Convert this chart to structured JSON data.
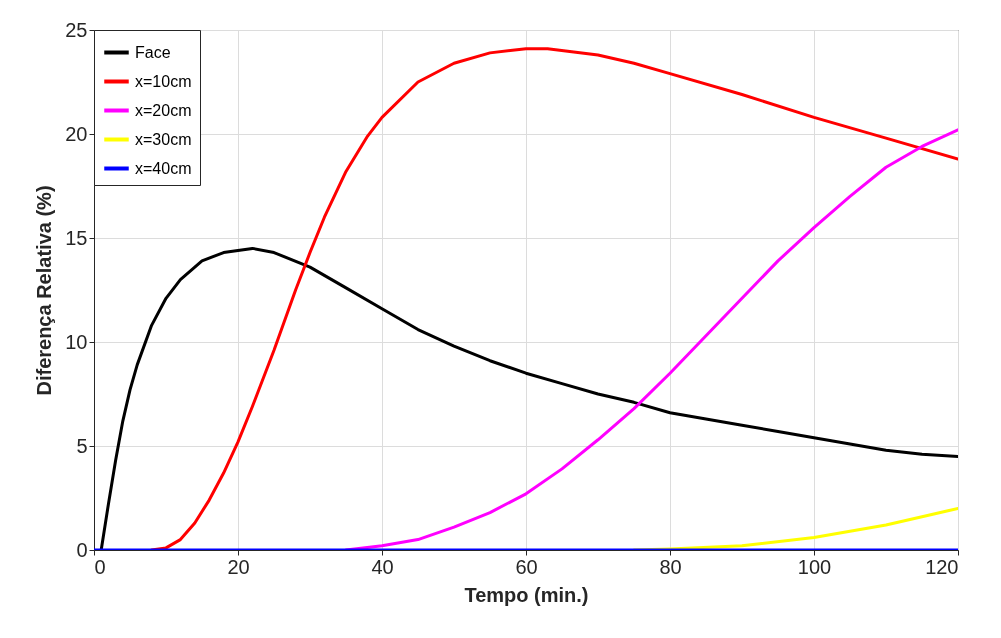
{
  "chart_data": {
    "type": "line",
    "xlabel": "Tempo (min.)",
    "ylabel": "Diferença Relativa (%)",
    "xlim": [
      0,
      120
    ],
    "xticks": [
      0,
      20,
      40,
      60,
      80,
      100,
      120
    ],
    "ylim": [
      0,
      25
    ],
    "yticks": [
      0,
      5,
      10,
      15,
      20,
      25
    ],
    "grid": true,
    "legend": "top left",
    "line_style": "solid",
    "marker": "none",
    "series": [
      {
        "name": "Face",
        "color": "#000000",
        "x": [
          1,
          2,
          3,
          4,
          5,
          6,
          8,
          10,
          12,
          15,
          18,
          22,
          25,
          30,
          35,
          40,
          45,
          50,
          55,
          60,
          65,
          70,
          75,
          80,
          85,
          90,
          95,
          100,
          105,
          110,
          115,
          120
        ],
        "values": [
          0,
          2.2,
          4.3,
          6.2,
          7.7,
          8.9,
          10.8,
          12.1,
          13.0,
          13.9,
          14.3,
          14.5,
          14.3,
          13.6,
          12.6,
          11.6,
          10.6,
          9.8,
          9.1,
          8.5,
          8.0,
          7.5,
          7.1,
          6.6,
          6.3,
          6.0,
          5.7,
          5.4,
          5.1,
          4.8,
          4.6,
          4.5
        ]
      },
      {
        "name": "x=10cm",
        "color": "#ff0000",
        "x": [
          8,
          10,
          12,
          14,
          16,
          18,
          20,
          22,
          25,
          28,
          30,
          32,
          35,
          38,
          40,
          45,
          50,
          55,
          60,
          63,
          70,
          75,
          80,
          90,
          100,
          110,
          120
        ],
        "values": [
          0,
          0.1,
          0.5,
          1.3,
          2.4,
          3.7,
          5.2,
          6.9,
          9.6,
          12.5,
          14.3,
          16.0,
          18.2,
          19.9,
          20.8,
          22.5,
          23.4,
          23.9,
          24.1,
          24.1,
          23.8,
          23.4,
          22.9,
          21.9,
          20.8,
          19.8,
          18.8
        ]
      },
      {
        "name": "x=20cm",
        "color": "#ff00ff",
        "x": [
          35,
          40,
          45,
          50,
          55,
          60,
          65,
          70,
          75,
          80,
          85,
          90,
          95,
          100,
          105,
          110,
          115,
          120
        ],
        "values": [
          0,
          0.2,
          0.5,
          1.1,
          1.8,
          2.7,
          3.9,
          5.3,
          6.8,
          8.5,
          10.3,
          12.1,
          13.9,
          15.5,
          17.0,
          18.4,
          19.4,
          20.2
        ]
      },
      {
        "name": "x=30cm",
        "color": "#ffff00",
        "x": [
          75,
          80,
          90,
          100,
          105,
          110,
          115,
          120
        ],
        "values": [
          0,
          0.05,
          0.2,
          0.6,
          0.9,
          1.2,
          1.6,
          2.0
        ]
      },
      {
        "name": "x=40cm",
        "color": "#0000ff",
        "x": [
          0,
          120
        ],
        "values": [
          0,
          0
        ]
      }
    ]
  }
}
